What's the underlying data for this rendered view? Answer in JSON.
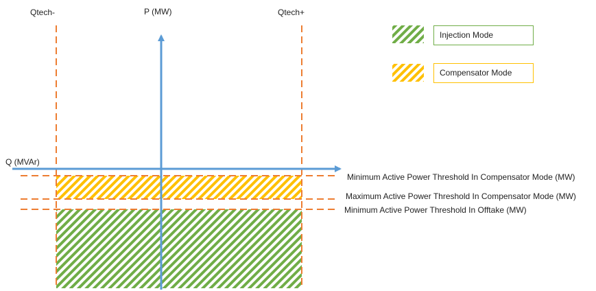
{
  "axes": {
    "y_label": "P (MW)",
    "x_label": "Q (MVAr)",
    "qtech_minus": "Qtech-",
    "qtech_plus": "Qtech+"
  },
  "thresholds": [
    "Minimum Active Power Threshold In Compensator Mode (MW)",
    "Maximum Active Power Threshold In Compensator Mode (MW)",
    "Minimum Active Power Threshold In Offtake (MW)"
  ],
  "legend": {
    "injection": "Injection Mode",
    "compensator": "Compensator Mode"
  },
  "colors": {
    "axis": "#5b9bd5",
    "dashed": "#ed7d31",
    "injection": "#70ad47",
    "compensator": "#ffc000"
  }
}
